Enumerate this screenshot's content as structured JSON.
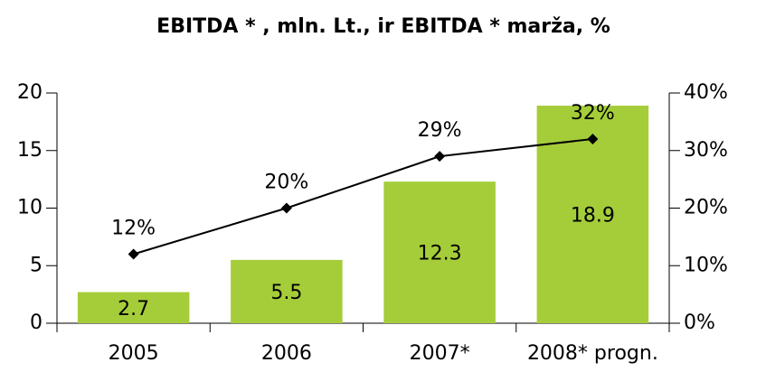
{
  "chart_data": {
    "type": "bar_line",
    "title": "EBITDA * , mln. Lt., ir EBITDA *   marža, %",
    "categories": [
      "2005",
      "2006",
      "2007*",
      "2008* progn."
    ],
    "series": [
      {
        "name": "EBITDA",
        "type": "bar",
        "color": "#a5cd39",
        "values": [
          2.7,
          5.5,
          12.3,
          18.9
        ]
      },
      {
        "name": "EBITDA marža",
        "type": "line",
        "axis": "y2",
        "color": "#000000",
        "values": [
          12,
          20,
          29,
          32
        ],
        "value_labels": [
          "12%",
          "20%",
          "29%",
          "32%"
        ]
      }
    ],
    "ylim": [
      0,
      20
    ],
    "yticks": [
      0,
      5,
      10,
      15,
      20
    ],
    "y2lim": [
      0,
      40
    ],
    "y2ticks": [
      {
        "value": 0,
        "label": "0%"
      },
      {
        "value": 10,
        "label": "10%"
      },
      {
        "value": 20,
        "label": "20%"
      },
      {
        "value": 30,
        "label": "30%"
      },
      {
        "value": 40,
        "label": "40%"
      }
    ],
    "grid": false
  }
}
